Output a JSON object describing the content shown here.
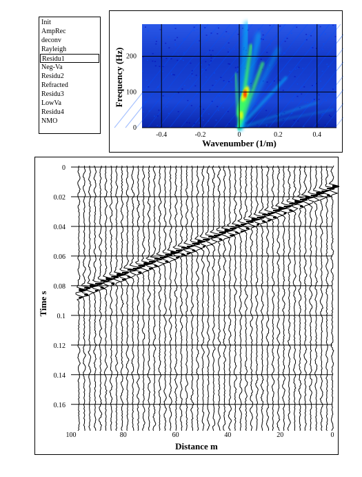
{
  "gather_list": {
    "items": [
      "Init",
      "AmpRec",
      "deconv",
      "Rayleigh",
      "Residu1",
      "Neg-Va",
      "Residu2",
      "Refracted",
      "Residu3",
      "LowVa",
      "Residu4",
      "NMO"
    ],
    "selected_index": 4
  },
  "chart_data": [
    {
      "type": "heatmap",
      "xlabel": "Wavenumber (1/m)",
      "ylabel": "Frequency (Hz)",
      "xlim": [
        -0.5,
        0.5
      ],
      "ylim": [
        0,
        290
      ],
      "xticks": [
        "-0.4",
        "-0.2",
        "0",
        "0.2",
        "0.4"
      ],
      "yticks": [
        "0",
        "100",
        "200"
      ],
      "grid": true,
      "colormap": [
        "#0000b4",
        "#0050ff",
        "#00c8ff",
        "#40ff60",
        "#ffff00",
        "#ff2000"
      ],
      "background_color": "#1a3ed8",
      "energy_peak": {
        "wavenumber": 0.03,
        "frequency": 95
      }
    },
    {
      "type": "seismic-wiggle",
      "xlabel": "Distance m",
      "ylabel": "Time s",
      "xlim": [
        100,
        0
      ],
      "ylim": [
        0,
        0.175
      ],
      "xticks": [
        "100",
        "80",
        "60",
        "40",
        "20",
        "0"
      ],
      "yticks": [
        "0",
        "0.02",
        "0.04",
        "0.06",
        "0.08",
        "0.1",
        "0.12",
        "0.14",
        "0.16"
      ],
      "grid": true,
      "trace_count": 48,
      "event": {
        "distance_start": 97,
        "time_start": 0.083,
        "distance_end": 0,
        "time_end": 0.013
      }
    }
  ]
}
